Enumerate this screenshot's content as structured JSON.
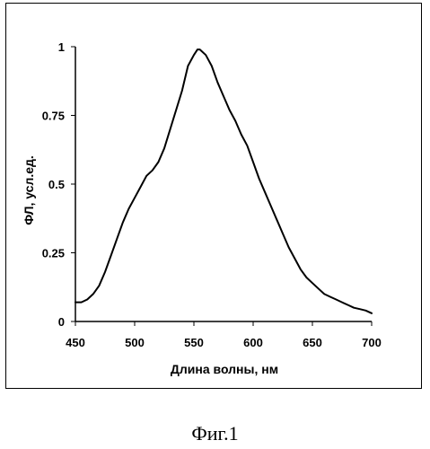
{
  "chart_data": {
    "type": "line",
    "xlabel": "Длина волны, нм",
    "ylabel": "ФЛ, усл.ед.",
    "xlim": [
      450,
      700
    ],
    "ylim": [
      0,
      1
    ],
    "x_ticks": [
      "450",
      "500",
      "550",
      "600",
      "650",
      "700"
    ],
    "y_ticks": [
      "0",
      "0.25",
      "0.5",
      "0.75",
      "1"
    ],
    "grid": false,
    "legend": "none",
    "series": [
      {
        "x": [
          450,
          455,
          460,
          465,
          470,
          475,
          480,
          485,
          490,
          495,
          500,
          505,
          510,
          515,
          520,
          525,
          530,
          535,
          540,
          545,
          550,
          553,
          555,
          560,
          565,
          570,
          575,
          580,
          585,
          590,
          595,
          600,
          605,
          610,
          615,
          620,
          625,
          630,
          635,
          640,
          645,
          650,
          655,
          660,
          665,
          670,
          675,
          680,
          685,
          690,
          695,
          700
        ],
        "y": [
          0.07,
          0.07,
          0.08,
          0.1,
          0.13,
          0.18,
          0.24,
          0.3,
          0.36,
          0.41,
          0.45,
          0.49,
          0.53,
          0.55,
          0.58,
          0.63,
          0.7,
          0.77,
          0.84,
          0.93,
          0.97,
          0.99,
          0.99,
          0.97,
          0.93,
          0.87,
          0.82,
          0.77,
          0.73,
          0.68,
          0.64,
          0.58,
          0.52,
          0.47,
          0.42,
          0.37,
          0.32,
          0.27,
          0.23,
          0.19,
          0.16,
          0.14,
          0.12,
          0.1,
          0.09,
          0.08,
          0.07,
          0.06,
          0.05,
          0.045,
          0.04,
          0.03
        ],
        "color": "#000000"
      }
    ]
  },
  "figure": {
    "caption": "Фиг.1"
  }
}
